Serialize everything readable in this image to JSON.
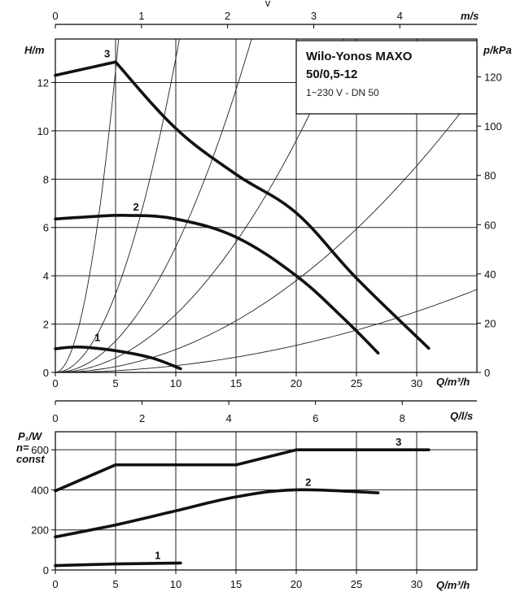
{
  "title_box": {
    "line1": "Wilo-Yonos MAXO",
    "line2": "50/0,5-12",
    "line3": "1~230 V - DN 50"
  },
  "chart_data": [
    {
      "type": "line",
      "name": "head-curves",
      "x_label": "Q/m³/h",
      "x_ticks": [
        0,
        5,
        10,
        15,
        20,
        25,
        30
      ],
      "xlim": [
        0,
        35
      ],
      "y_label": "H/m",
      "y_ticks": [
        0,
        2,
        4,
        6,
        8,
        10,
        12
      ],
      "ylim": [
        0,
        13.8
      ],
      "y2_label": "p/kPa",
      "y2_ticks": [
        0,
        20,
        40,
        60,
        80,
        100,
        120
      ],
      "top_axis_label": "m/s",
      "top_axis_ticks": [
        0,
        1,
        2,
        3,
        4
      ],
      "top_axis_q_per_unit": 7.15,
      "top_axis_marker": "v",
      "second_x_label": "Q/l/s",
      "second_x_ticks": [
        0,
        2,
        4,
        6,
        8
      ],
      "grid": true,
      "series": [
        {
          "name": "1",
          "label_at": [
            3.5,
            1.3
          ],
          "points": [
            [
              0,
              0.98
            ],
            [
              2,
              1.05
            ],
            [
              5,
              0.9
            ],
            [
              8,
              0.6
            ],
            [
              10.4,
              0.15
            ]
          ]
        },
        {
          "name": "2",
          "label_at": [
            6.7,
            6.7
          ],
          "points": [
            [
              0,
              6.35
            ],
            [
              3,
              6.45
            ],
            [
              6,
              6.5
            ],
            [
              10,
              6.35
            ],
            [
              15,
              5.6
            ],
            [
              20,
              4.0
            ],
            [
              24,
              2.2
            ],
            [
              26.8,
              0.8
            ]
          ]
        },
        {
          "name": "3",
          "label_at": [
            4.3,
            13.05
          ],
          "points": [
            [
              0,
              12.3
            ],
            [
              5,
              12.85
            ],
            [
              10,
              10.1
            ],
            [
              15,
              8.2
            ],
            [
              20,
              6.6
            ],
            [
              25,
              3.9
            ],
            [
              31,
              1.0
            ]
          ]
        }
      ],
      "system_curve_coefficients": [
        0.5,
        0.13,
        0.052,
        0.024,
        0.0095,
        0.0028
      ]
    },
    {
      "type": "line",
      "name": "power-curves",
      "x_label": "Q/m³/h",
      "x_ticks": [
        0,
        5,
        10,
        15,
        20,
        25,
        30
      ],
      "xlim": [
        0,
        35
      ],
      "y_label": "P₁/W",
      "y_label_2": "n=",
      "y_label_3": "const",
      "y_ticks": [
        0,
        200,
        400,
        600
      ],
      "ylim": [
        0,
        690
      ],
      "grid": true,
      "series": [
        {
          "name": "1",
          "label_at": [
            8.5,
            55
          ],
          "points": [
            [
              0,
              22
            ],
            [
              5,
              30
            ],
            [
              10.4,
              35
            ]
          ]
        },
        {
          "name": "2",
          "label_at": [
            21,
            420
          ],
          "points": [
            [
              0,
              165
            ],
            [
              5,
              225
            ],
            [
              10,
              295
            ],
            [
              15,
              365
            ],
            [
              20,
              400
            ],
            [
              26.8,
              385
            ]
          ]
        },
        {
          "name": "3",
          "label_at": [
            28.5,
            620
          ],
          "points": [
            [
              0,
              395
            ],
            [
              5,
              525
            ],
            [
              15,
              525
            ],
            [
              20,
              600
            ],
            [
              31,
              600
            ]
          ]
        }
      ]
    }
  ]
}
